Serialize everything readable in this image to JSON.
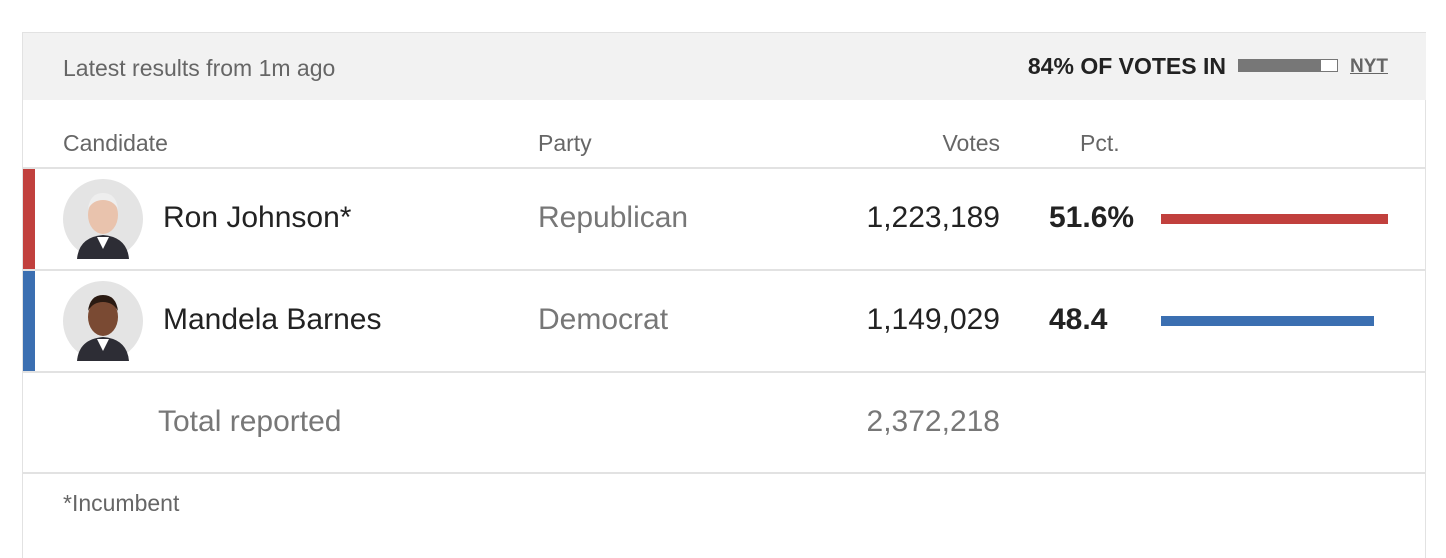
{
  "header": {
    "updated": "Latest results from 1m ago",
    "reporting_label": "84% OF VOTES IN",
    "reporting_pct": 84,
    "source": "NYT"
  },
  "table": {
    "columns": [
      "Candidate",
      "Party",
      "Votes",
      "Pct."
    ],
    "rows": [
      {
        "name": "Ron Johnson*",
        "party": "Republican",
        "votes": "1,223,189",
        "pct": "51.6%",
        "share": 51.6,
        "color": "#c1403d"
      },
      {
        "name": "Mandela Barnes",
        "party": "Democrat",
        "votes": "1,149,029",
        "pct": "48.4",
        "share": 48.4,
        "color": "#3b6fb1"
      }
    ],
    "total_label": "Total reported",
    "total_votes": "2,372,218"
  },
  "footnote": "*Incumbent"
}
